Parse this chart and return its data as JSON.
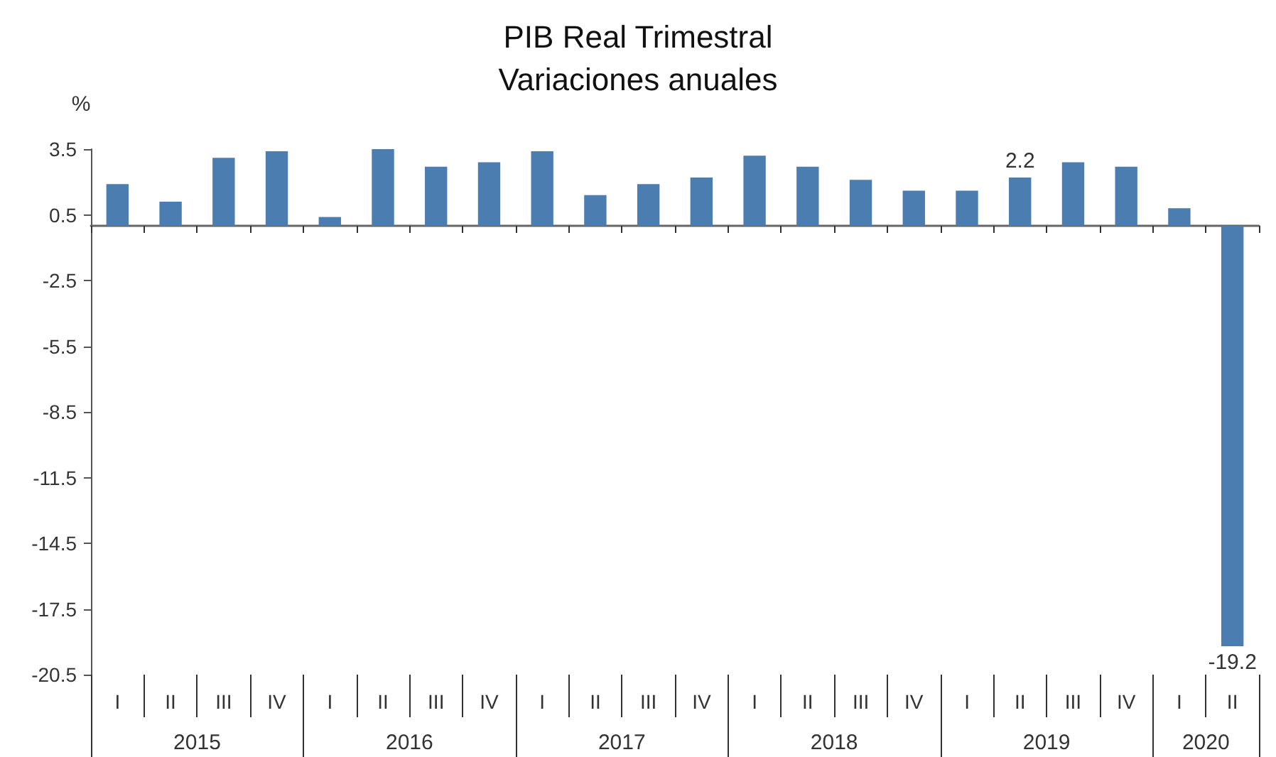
{
  "chart_data": {
    "type": "bar",
    "title": "PIB Real Trimestral",
    "subtitle": "Variaciones anuales",
    "ylabel": "%",
    "categories": [
      "I",
      "II",
      "III",
      "IV",
      "I",
      "II",
      "III",
      "IV",
      "I",
      "II",
      "III",
      "IV",
      "I",
      "II",
      "III",
      "IV",
      "I",
      "II",
      "III",
      "IV",
      "I",
      "II"
    ],
    "values": [
      1.9,
      1.1,
      3.1,
      3.4,
      0.4,
      3.5,
      2.7,
      2.9,
      3.4,
      1.4,
      1.9,
      2.2,
      3.2,
      2.7,
      2.1,
      1.6,
      1.6,
      2.2,
      2.9,
      2.7,
      0.8,
      -19.2
    ],
    "color": "#4b7db1",
    "value_labels": [
      null,
      null,
      null,
      null,
      null,
      null,
      null,
      null,
      null,
      null,
      null,
      null,
      null,
      null,
      null,
      null,
      null,
      "2.2",
      null,
      null,
      null,
      "-19.2"
    ],
    "ylim": [
      -20.5,
      3.5
    ],
    "yticks": [
      3.5,
      0.5,
      -2.5,
      -5.5,
      -8.5,
      -11.5,
      -14.5,
      -17.5,
      -20.5
    ],
    "annotations": [
      "2015",
      "2016",
      "2017",
      "2018",
      "2019",
      "2020"
    ]
  }
}
